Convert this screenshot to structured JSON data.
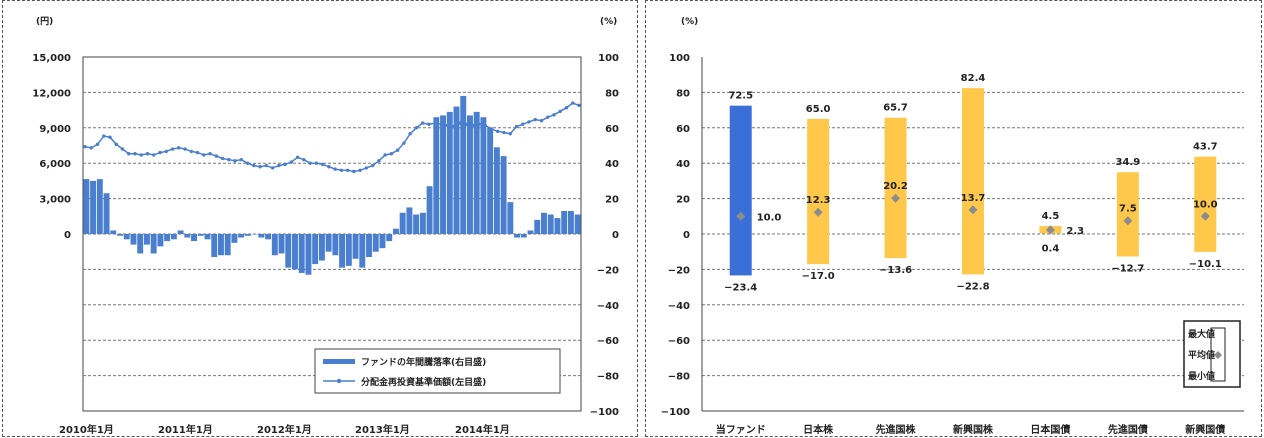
{
  "chart_data": [
    {
      "type": "bar",
      "y1_unit": "(円)",
      "y2_unit": "(%)",
      "y1_ticks": [
        "15,000",
        "12,000",
        "9,000",
        "6,000",
        "3,000",
        "0"
      ],
      "y1_ticks_num": [
        15000,
        12000,
        9000,
        6000,
        3000,
        0
      ],
      "y2_ticks": [
        "100",
        "80",
        "60",
        "40",
        "20",
        "0",
        "−20",
        "−40",
        "−60",
        "−80",
        "−100"
      ],
      "y2_ticks_num": [
        100,
        80,
        60,
        40,
        20,
        0,
        -20,
        -40,
        -60,
        -80,
        -100
      ],
      "y1_lim": [
        -15000,
        15000
      ],
      "y2_lim": [
        -100,
        100
      ],
      "x_labels": [
        "2010年1月",
        "2011年1月",
        "2012年1月",
        "2013年1月",
        "2014年1月"
      ],
      "grid": true,
      "legend_position": "bottom-right",
      "colors": {
        "bars": "#4a7fd0",
        "line": "#4a7fd0"
      },
      "series": [
        {
          "name": "ファンドの年間騰落率(右目盛)",
          "kind": "bar",
          "axis": "right",
          "values": [
            31,
            30,
            31,
            23,
            2,
            -1,
            -3,
            -6,
            -11,
            -6,
            -11,
            -7,
            -4,
            -3,
            2,
            -2,
            -4,
            -1,
            -3,
            -13,
            -12,
            -12,
            -5,
            -2,
            -1,
            0,
            -2,
            -3,
            -12,
            -11,
            -19,
            -20,
            -22,
            -23,
            -17,
            -15,
            -10,
            -12,
            -19,
            -18,
            -14,
            -19,
            -13,
            -10,
            -8,
            -4,
            3,
            12,
            15,
            11,
            12,
            27,
            66,
            67,
            69,
            72,
            78,
            67,
            69,
            66,
            60,
            49,
            44,
            18,
            -2,
            -2,
            2,
            8,
            12,
            11,
            9,
            13,
            13,
            11
          ]
        },
        {
          "name": "分配金再投資基準価額(左目盛)",
          "kind": "line",
          "axis": "left",
          "values": [
            7400,
            7300,
            7600,
            8300,
            8200,
            7600,
            7200,
            6800,
            6800,
            6700,
            6800,
            6700,
            6900,
            7000,
            7200,
            7300,
            7200,
            7000,
            6900,
            6700,
            6800,
            6600,
            6400,
            6300,
            6200,
            6300,
            6000,
            5800,
            5700,
            5800,
            5600,
            5800,
            5900,
            6100,
            6500,
            6300,
            6000,
            6000,
            5900,
            5700,
            5500,
            5400,
            5400,
            5300,
            5400,
            5600,
            5800,
            6200,
            6700,
            6800,
            7100,
            7700,
            8500,
            9000,
            9400,
            9300,
            9400,
            9300,
            9200,
            9100,
            9400,
            9300,
            9200,
            9300,
            9200,
            8900,
            8700,
            8600,
            8500,
            9100,
            9300,
            9500,
            9700,
            9600,
            9900,
            10100,
            10400,
            10700,
            11100,
            10900
          ]
        }
      ]
    },
    {
      "type": "range",
      "unit": "(%)",
      "y_ticks": [
        "100",
        "80",
        "60",
        "40",
        "20",
        "0",
        "−20",
        "−40",
        "−60",
        "−80",
        "−100"
      ],
      "y_ticks_num": [
        100,
        80,
        60,
        40,
        20,
        0,
        -20,
        -40,
        -60,
        -80,
        -100
      ],
      "y_lim": [
        -100,
        100
      ],
      "grid": true,
      "legend_position": "bottom-right",
      "legend_labels": [
        "最大値",
        "平均値",
        "最小値"
      ],
      "colors": {
        "fund": "#3a6fd8",
        "others": "#ffc84a",
        "marker": "#8c8c8c"
      },
      "categories": [
        "当ファンド",
        "日本株",
        "先進国株",
        "新興国株",
        "日本国債",
        "先進国債",
        "新興国債"
      ],
      "max": [
        72.5,
        65.0,
        65.7,
        82.4,
        4.5,
        34.9,
        43.7
      ],
      "avg": [
        10.0,
        12.3,
        20.2,
        13.7,
        2.3,
        7.5,
        10.0
      ],
      "min": [
        -23.4,
        -17.0,
        -13.6,
        -22.8,
        0.4,
        -12.7,
        -10.1
      ],
      "max_labels": [
        "72.5",
        "65.0",
        "65.7",
        "82.4",
        "4.5",
        "34.9",
        "43.7"
      ],
      "avg_labels": [
        "10.0",
        "12.3",
        "20.2",
        "13.7",
        "2.3",
        "7.5",
        "10.0"
      ],
      "min_labels": [
        "−23.4",
        "−17.0",
        "−13.6",
        "−22.8",
        "0.4",
        "−12.7",
        "−10.1"
      ]
    }
  ]
}
